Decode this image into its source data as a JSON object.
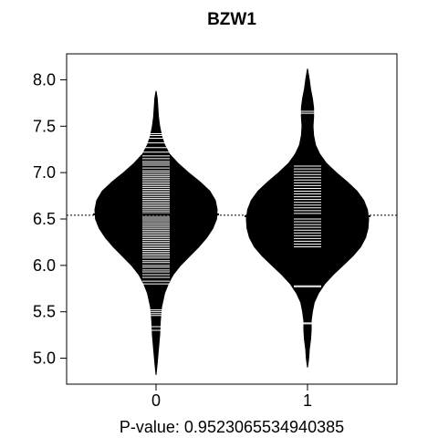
{
  "chart_data": {
    "type": "beanplot",
    "title": "BZW1",
    "xlabel": "P-value: 0.9523065534940385",
    "ylabel": "",
    "ylim": [
      4.72,
      8.28
    ],
    "y_ticks": [
      "5.0",
      "5.5",
      "6.0",
      "6.5",
      "7.0",
      "7.5",
      "8.0"
    ],
    "categories": [
      "0",
      "1"
    ],
    "overall_mean": 6.54,
    "series": [
      {
        "group": "0",
        "mean": 6.55,
        "density": [
          [
            4.82,
            0.0
          ],
          [
            4.95,
            0.02
          ],
          [
            5.1,
            0.04
          ],
          [
            5.25,
            0.06
          ],
          [
            5.4,
            0.07
          ],
          [
            5.55,
            0.09
          ],
          [
            5.7,
            0.14
          ],
          [
            5.8,
            0.2
          ],
          [
            5.9,
            0.28
          ],
          [
            6.0,
            0.4
          ],
          [
            6.1,
            0.55
          ],
          [
            6.2,
            0.7
          ],
          [
            6.3,
            0.83
          ],
          [
            6.4,
            0.93
          ],
          [
            6.5,
            0.99
          ],
          [
            6.6,
            1.0
          ],
          [
            6.7,
            0.97
          ],
          [
            6.8,
            0.88
          ],
          [
            6.9,
            0.72
          ],
          [
            7.0,
            0.53
          ],
          [
            7.1,
            0.36
          ],
          [
            7.2,
            0.22
          ],
          [
            7.3,
            0.14
          ],
          [
            7.4,
            0.09
          ],
          [
            7.5,
            0.06
          ],
          [
            7.6,
            0.04
          ],
          [
            7.7,
            0.03
          ],
          [
            7.8,
            0.02
          ],
          [
            7.88,
            0.0
          ]
        ],
        "observations": [
          5.3,
          5.34,
          5.46,
          5.48,
          5.5,
          5.52,
          5.8,
          5.83,
          5.87,
          5.9,
          5.93,
          5.95,
          5.98,
          6.0,
          6.03,
          6.05,
          6.08,
          6.1,
          6.12,
          6.14,
          6.16,
          6.18,
          6.2,
          6.22,
          6.24,
          6.26,
          6.28,
          6.3,
          6.32,
          6.34,
          6.36,
          6.38,
          6.4,
          6.42,
          6.44,
          6.46,
          6.48,
          6.5,
          6.52,
          6.54,
          6.56,
          6.58,
          6.6,
          6.62,
          6.64,
          6.66,
          6.68,
          6.7,
          6.72,
          6.74,
          6.76,
          6.78,
          6.8,
          6.82,
          6.84,
          6.86,
          6.88,
          6.9,
          6.92,
          6.94,
          6.96,
          6.98,
          7.0,
          7.02,
          7.05,
          7.08,
          7.1,
          7.12,
          7.15,
          7.18,
          7.22,
          7.27,
          7.32,
          7.37,
          7.4,
          7.42
        ]
      },
      {
        "group": "1",
        "mean": 6.53,
        "density": [
          [
            4.9,
            0.0
          ],
          [
            5.0,
            0.02
          ],
          [
            5.1,
            0.03
          ],
          [
            5.2,
            0.05
          ],
          [
            5.3,
            0.06
          ],
          [
            5.4,
            0.06
          ],
          [
            5.5,
            0.08
          ],
          [
            5.6,
            0.11
          ],
          [
            5.7,
            0.18
          ],
          [
            5.8,
            0.28
          ],
          [
            5.9,
            0.42
          ],
          [
            6.0,
            0.58
          ],
          [
            6.1,
            0.74
          ],
          [
            6.2,
            0.87
          ],
          [
            6.3,
            0.95
          ],
          [
            6.4,
            0.99
          ],
          [
            6.5,
            1.0
          ],
          [
            6.6,
            0.98
          ],
          [
            6.7,
            0.92
          ],
          [
            6.8,
            0.81
          ],
          [
            6.9,
            0.65
          ],
          [
            7.0,
            0.47
          ],
          [
            7.1,
            0.31
          ],
          [
            7.2,
            0.2
          ],
          [
            7.3,
            0.13
          ],
          [
            7.4,
            0.1
          ],
          [
            7.5,
            0.09
          ],
          [
            7.6,
            0.1
          ],
          [
            7.7,
            0.1
          ],
          [
            7.8,
            0.08
          ],
          [
            7.9,
            0.05
          ],
          [
            8.0,
            0.03
          ],
          [
            8.12,
            0.0
          ]
        ],
        "observations": [
          5.37,
          5.38,
          5.77,
          5.78,
          6.2,
          6.23,
          6.26,
          6.29,
          6.32,
          6.35,
          6.38,
          6.41,
          6.44,
          6.47,
          6.5,
          6.53,
          6.56,
          6.59,
          6.62,
          6.65,
          6.68,
          6.71,
          6.74,
          6.77,
          6.8,
          6.83,
          6.86,
          6.89,
          6.92,
          6.95,
          6.98,
          7.01,
          7.04,
          7.07,
          7.64,
          7.66
        ]
      }
    ]
  }
}
